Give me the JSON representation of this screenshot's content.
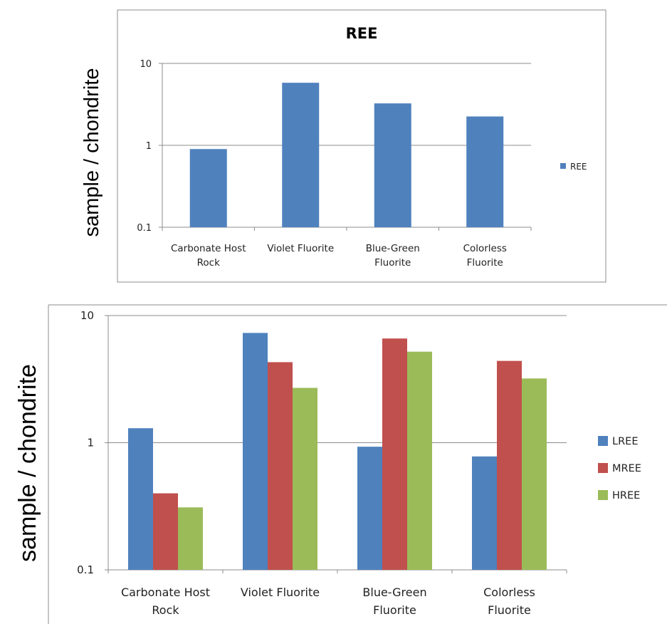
{
  "chart_data": [
    {
      "type": "bar",
      "title": "REE",
      "ylabel": "sample / chondrite",
      "xlabel": "",
      "yscale": "log",
      "ylim": [
        0.1,
        10
      ],
      "yticks": [
        "10",
        "1",
        "0.1"
      ],
      "categories": [
        [
          "Carbonate Host",
          "Rock"
        ],
        [
          "Violet Fluorite"
        ],
        [
          "Blue-Green",
          "Fluorite"
        ],
        [
          "Colorless",
          "Fluorite"
        ]
      ],
      "series": [
        {
          "name": "REE",
          "color": "#4f81bd",
          "values": [
            0.9,
            5.8,
            3.25,
            2.25
          ]
        }
      ],
      "legend": "right",
      "grid": true
    },
    {
      "type": "bar",
      "title": "",
      "ylabel": "sample / chondrite",
      "xlabel": "",
      "yscale": "log",
      "ylim": [
        0.1,
        10
      ],
      "yticks": [
        "10",
        "1",
        "0.1"
      ],
      "categories": [
        [
          "Carbonate Host",
          "Rock"
        ],
        [
          "Violet Fluorite"
        ],
        [
          "Blue-Green",
          "Fluorite"
        ],
        [
          "Colorless",
          "Fluorite"
        ]
      ],
      "series": [
        {
          "name": "LREE",
          "color": "#4f81bd",
          "values": [
            1.3,
            7.3,
            0.93,
            0.78
          ]
        },
        {
          "name": "MREE",
          "color": "#c0504d",
          "values": [
            0.4,
            4.3,
            6.6,
            4.4
          ]
        },
        {
          "name": "HREE",
          "color": "#9bbb59",
          "values": [
            0.31,
            2.7,
            5.2,
            3.2
          ]
        }
      ],
      "legend": "right",
      "grid": true
    }
  ]
}
